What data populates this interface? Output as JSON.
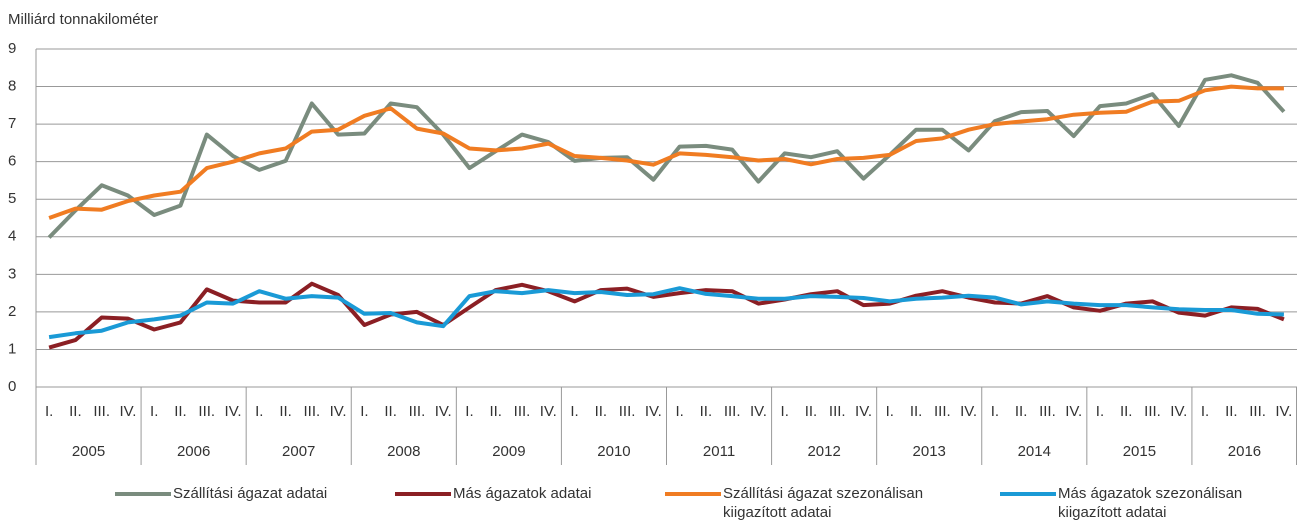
{
  "chart_data": {
    "type": "line",
    "y_label": "Milliárd tonnakilométer",
    "categories": [
      "I.",
      "II.",
      "III.",
      "IV.",
      "I.",
      "II.",
      "III.",
      "IV.",
      "I.",
      "II.",
      "III.",
      "IV.",
      "I.",
      "II.",
      "III.",
      "IV.",
      "I.",
      "II.",
      "III.",
      "IV.",
      "I.",
      "II.",
      "III.",
      "IV.",
      "I.",
      "II.",
      "III.",
      "IV.",
      "I.",
      "II.",
      "III.",
      "IV.",
      "I.",
      "II.",
      "III.",
      "IV.",
      "I.",
      "II.",
      "III.",
      "IV.",
      "I.",
      "II.",
      "III.",
      "IV.",
      "I.",
      "II.",
      "III.",
      "IV."
    ],
    "years": [
      "2005",
      "2006",
      "2007",
      "2008",
      "2009",
      "2010",
      "2011",
      "2012",
      "2013",
      "2014",
      "2015",
      "2016"
    ],
    "ylim": [
      0,
      9
    ],
    "yticks": [
      0,
      1,
      2,
      3,
      4,
      5,
      6,
      7,
      8,
      9
    ],
    "grid": true,
    "series": [
      {
        "name": "Szállítási ágazat adatai",
        "color": "#7a8c7e",
        "values": [
          3.98,
          4.7,
          5.37,
          5.1,
          4.58,
          4.83,
          6.72,
          6.15,
          5.78,
          6.02,
          7.55,
          6.72,
          6.75,
          7.55,
          7.45,
          6.72,
          5.83,
          6.28,
          6.72,
          6.52,
          6.02,
          6.1,
          6.12,
          5.52,
          6.4,
          6.42,
          6.32,
          5.47,
          6.22,
          6.12,
          6.28,
          5.55,
          6.18,
          6.85,
          6.85,
          6.3,
          7.08,
          7.32,
          7.35,
          6.68,
          7.48,
          7.55,
          7.8,
          6.95,
          8.18,
          8.3,
          8.1,
          7.33
        ]
      },
      {
        "name": "Más ágazatok adatai",
        "color": "#8b1f24",
        "values": [
          1.05,
          1.25,
          1.85,
          1.82,
          1.53,
          1.72,
          2.6,
          2.3,
          2.25,
          2.25,
          2.75,
          2.45,
          1.65,
          1.93,
          2.0,
          1.65,
          2.12,
          2.58,
          2.72,
          2.55,
          2.28,
          2.58,
          2.62,
          2.4,
          2.5,
          2.58,
          2.55,
          2.22,
          2.33,
          2.47,
          2.55,
          2.18,
          2.22,
          2.43,
          2.55,
          2.38,
          2.25,
          2.22,
          2.42,
          2.12,
          2.03,
          2.22,
          2.28,
          1.98,
          1.9,
          2.12,
          2.08,
          1.8
        ]
      },
      {
        "name": "Szállítási ágazat szezonálisan kiigazított adatai",
        "color": "#f07c22",
        "values": [
          4.5,
          4.75,
          4.72,
          4.95,
          5.1,
          5.2,
          5.83,
          6.0,
          6.22,
          6.35,
          6.8,
          6.85,
          7.22,
          7.42,
          6.88,
          6.75,
          6.35,
          6.3,
          6.35,
          6.48,
          6.15,
          6.1,
          6.03,
          5.92,
          6.22,
          6.18,
          6.12,
          6.03,
          6.07,
          5.93,
          6.07,
          6.1,
          6.18,
          6.55,
          6.62,
          6.85,
          7.0,
          7.07,
          7.13,
          7.25,
          7.3,
          7.33,
          7.6,
          7.62,
          7.9,
          8.0,
          7.95,
          7.95
        ]
      },
      {
        "name": "Más ágazatok szezonálisan kiigazított adatai",
        "color": "#1a9ad6",
        "values": [
          1.33,
          1.43,
          1.5,
          1.72,
          1.8,
          1.9,
          2.25,
          2.22,
          2.55,
          2.35,
          2.42,
          2.38,
          1.95,
          1.97,
          1.72,
          1.62,
          2.42,
          2.55,
          2.5,
          2.58,
          2.5,
          2.53,
          2.45,
          2.47,
          2.63,
          2.48,
          2.42,
          2.35,
          2.35,
          2.42,
          2.4,
          2.37,
          2.28,
          2.35,
          2.38,
          2.43,
          2.38,
          2.2,
          2.28,
          2.22,
          2.18,
          2.18,
          2.12,
          2.07,
          2.05,
          2.05,
          1.95,
          1.93
        ]
      }
    ]
  }
}
